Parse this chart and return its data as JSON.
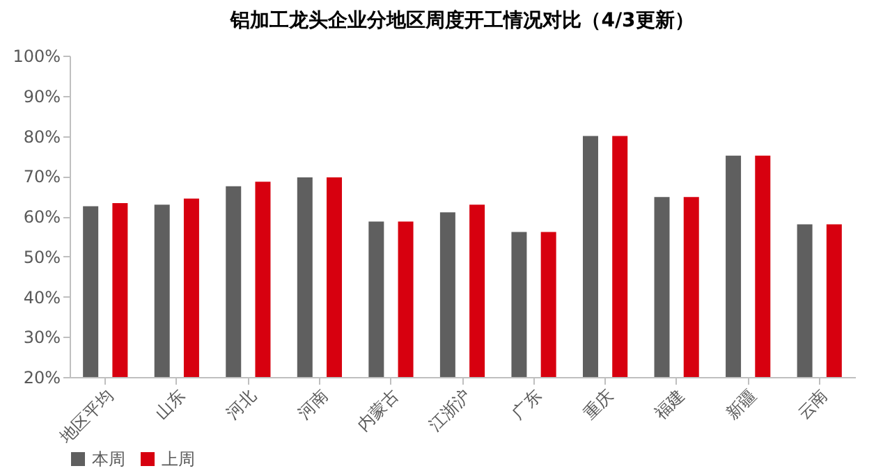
{
  "chart_data": {
    "type": "bar",
    "title": "铝加工龙头企业分地区周度开工情况对比（4/3更新）",
    "categories": [
      "地区平均",
      "山东",
      "河北",
      "河南",
      "内蒙古",
      "江浙沪",
      "广东",
      "重庆",
      "福建",
      "新疆",
      "云南"
    ],
    "series": [
      {
        "name": "本周",
        "color": "#5f5f5f",
        "values": [
          62.5,
          62.9,
          67.5,
          69.7,
          58.7,
          61.0,
          56.1,
          80.0,
          64.8,
          75.1,
          58.0
        ]
      },
      {
        "name": "上周",
        "color": "#d7000f",
        "values": [
          63.3,
          64.4,
          68.6,
          69.7,
          58.7,
          62.9,
          56.1,
          80.0,
          64.8,
          75.1,
          58.0
        ]
      }
    ],
    "ylim": [
      20,
      100
    ],
    "yticks": [
      {
        "value": 20,
        "label": "20%"
      },
      {
        "value": 30,
        "label": "30%"
      },
      {
        "value": 40,
        "label": "40%"
      },
      {
        "value": 50,
        "label": "50%"
      },
      {
        "value": 60,
        "label": "60%"
      },
      {
        "value": 70,
        "label": "70%"
      },
      {
        "value": 80,
        "label": "80%"
      },
      {
        "value": 90,
        "label": "90%"
      },
      {
        "value": 100,
        "label": "100%"
      }
    ],
    "grid": false,
    "legend": "bottom"
  }
}
